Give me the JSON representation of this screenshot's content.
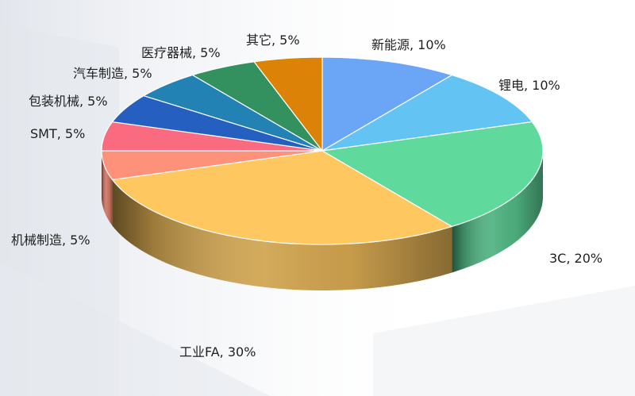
{
  "chart_data": {
    "type": "pie",
    "variant": "3d",
    "title": "",
    "legend": "none",
    "slices": [
      {
        "name": "新能源",
        "value": 10,
        "label": "新能源, 10%",
        "color": "#6aa5f6"
      },
      {
        "name": "锂电",
        "value": 10,
        "label": "锂电, 10%",
        "color": "#63c4f4"
      },
      {
        "name": "3C",
        "value": 20,
        "label": "3C, 20%",
        "color": "#60d99c"
      },
      {
        "name": "工业FA",
        "value": 30,
        "label": "工业FA, 30%",
        "color": "#fec75f"
      },
      {
        "name": "机械制造",
        "value": 5,
        "label": "机械制造, 5%",
        "color": "#fe917a"
      },
      {
        "name": "SMT",
        "value": 5,
        "label": "SMT, 5%",
        "color": "#fb6b80"
      },
      {
        "name": "包装机械",
        "value": 5,
        "label": "包装机械, 5%",
        "color": "#255fc0"
      },
      {
        "name": "汽车制造",
        "value": 5,
        "label": "汽车制造, 5%",
        "color": "#2382b4"
      },
      {
        "name": "医疗器械",
        "value": 5,
        "label": "医疗器械, 5%",
        "color": "#33915f"
      },
      {
        "name": "其它",
        "value": 5,
        "label": "其它, 5%",
        "color": "#db8207"
      }
    ]
  }
}
